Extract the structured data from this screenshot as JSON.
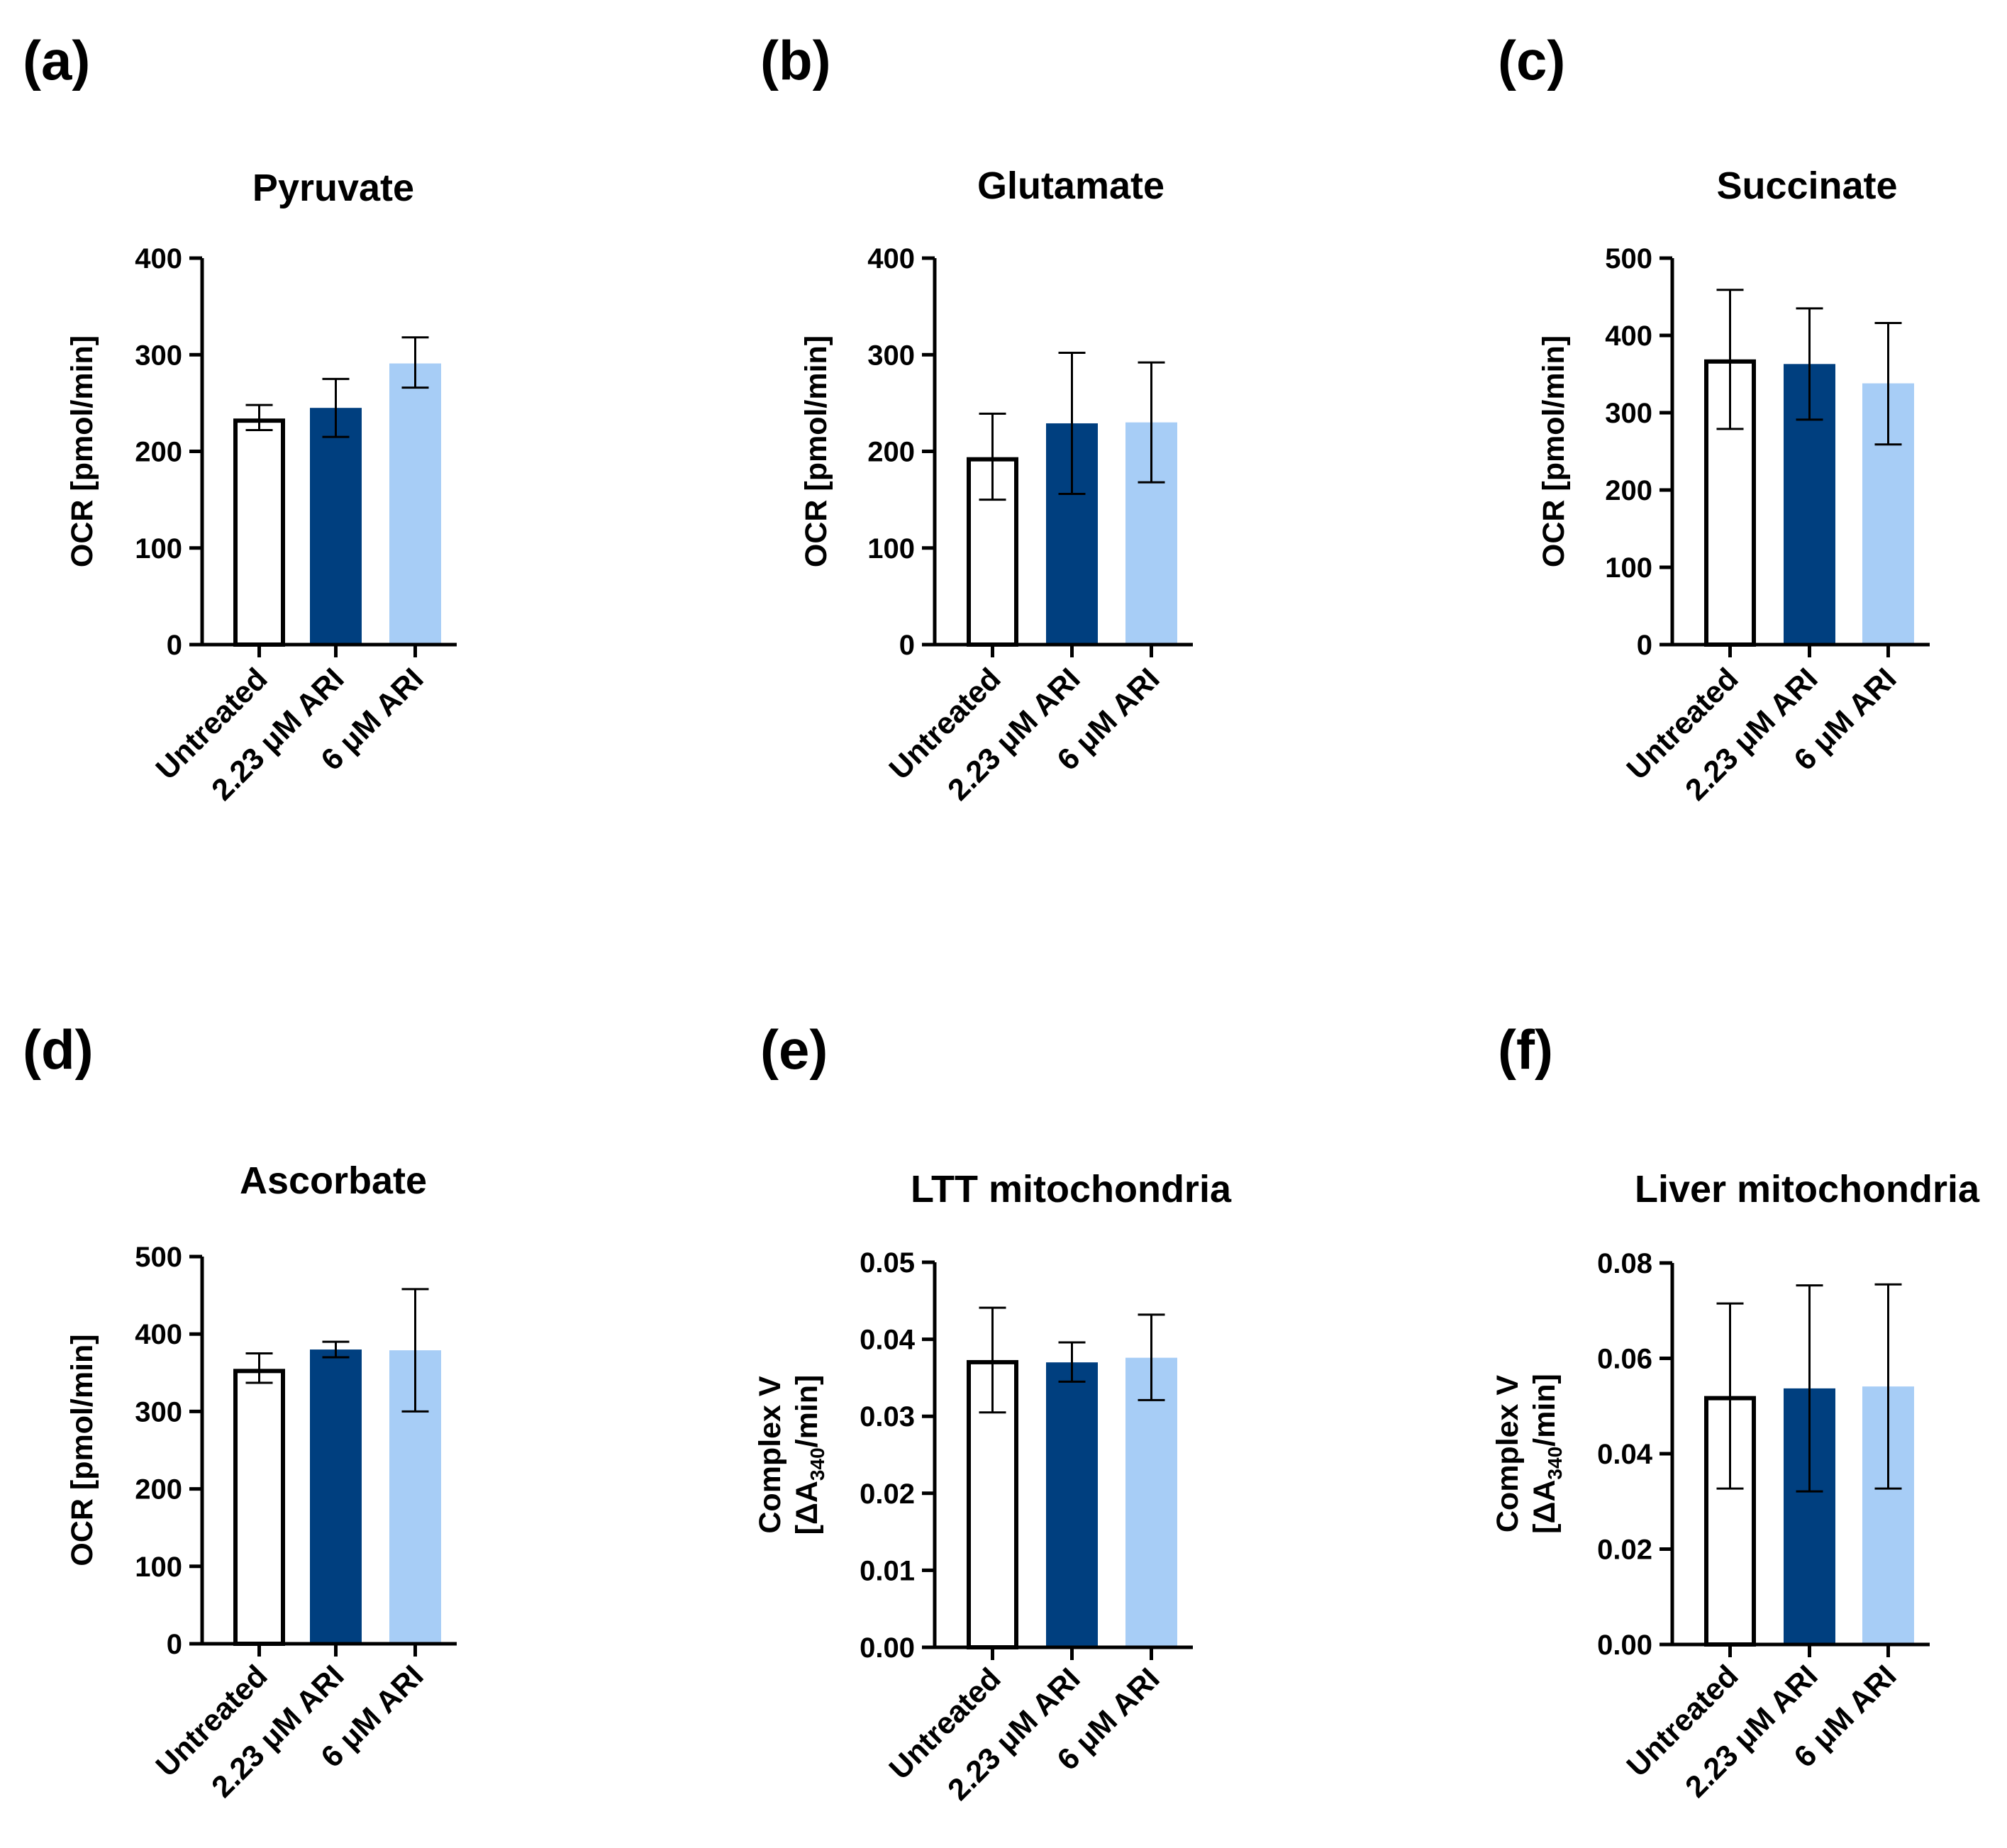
{
  "colors": {
    "untreated": "#ffffff",
    "ari_low": "#003f7f",
    "ari_high": "#a7cdf6",
    "axis": "#000000"
  },
  "chart_data": [
    {
      "panel": "(a)",
      "type": "bar",
      "title": "Pyruvate",
      "ylabel": "OCR [pmol/min]",
      "ylabel_parts": [],
      "ylim": [
        0,
        400
      ],
      "yticks": [
        "0",
        "100",
        "200",
        "300",
        "400"
      ],
      "ytick_values": [
        0,
        100,
        200,
        300,
        400
      ],
      "categories": [
        "Untreated",
        "2.23 μM ARI",
        "6 μM ARI"
      ],
      "values": [
        234,
        245,
        291
      ],
      "error_low": [
        222,
        215,
        266
      ],
      "error_high": [
        248,
        275,
        318
      ]
    },
    {
      "panel": "(b)",
      "type": "bar",
      "title": "Glutamate",
      "ylabel": "OCR [pmol/min]",
      "ylabel_parts": [],
      "ylim": [
        0,
        400
      ],
      "yticks": [
        "0",
        "100",
        "200",
        "300",
        "400"
      ],
      "ytick_values": [
        0,
        100,
        200,
        300,
        400
      ],
      "categories": [
        "Untreated",
        "2.23 μM ARI",
        "6 μM ARI"
      ],
      "values": [
        194,
        229,
        230
      ],
      "error_low": [
        150,
        156,
        168
      ],
      "error_high": [
        239,
        302,
        292
      ]
    },
    {
      "panel": "(c)",
      "type": "bar",
      "title": "Succinate",
      "ylabel": "OCR [pmol/min]",
      "ylabel_parts": [],
      "ylim": [
        0,
        500
      ],
      "yticks": [
        "0",
        "100",
        "200",
        "300",
        "400",
        "500"
      ],
      "ytick_values": [
        0,
        100,
        200,
        300,
        400,
        500
      ],
      "categories": [
        "Untreated",
        "2.23 μM ARI",
        "6 μM ARI"
      ],
      "values": [
        369,
        363,
        338
      ],
      "error_low": [
        279,
        291,
        259
      ],
      "error_high": [
        459,
        435,
        416
      ]
    },
    {
      "panel": "(d)",
      "type": "bar",
      "title": "Ascorbate",
      "ylabel": "OCR [pmol/min]",
      "ylabel_parts": [],
      "ylim": [
        0,
        500
      ],
      "yticks": [
        "0",
        "100",
        "200",
        "300",
        "400",
        "500"
      ],
      "ytick_values": [
        0,
        100,
        200,
        300,
        400,
        500
      ],
      "categories": [
        "Untreated",
        "2.23 μM ARI",
        "6 μM ARI"
      ],
      "values": [
        355,
        380,
        379
      ],
      "error_low": [
        337,
        370,
        300
      ],
      "error_high": [
        375,
        390,
        458
      ]
    },
    {
      "panel": "(e)",
      "type": "bar",
      "title": "LTT mitochondria",
      "ylabel": "Complex V [ΔA340/min]",
      "ylabel_parts": [
        "Complex V",
        "[ΔA",
        "340",
        "/min]"
      ],
      "ylim": [
        0,
        0.05
      ],
      "yticks": [
        "0.00",
        "0.01",
        "0.02",
        "0.03",
        "0.04",
        "0.05"
      ],
      "ytick_values": [
        0,
        0.01,
        0.02,
        0.03,
        0.04,
        0.05
      ],
      "categories": [
        "Untreated",
        "2.23 μM ARI",
        "6 μM ARI"
      ],
      "values": [
        0.0373,
        0.037,
        0.0376
      ],
      "error_low": [
        0.0305,
        0.0345,
        0.0321
      ],
      "error_high": [
        0.0441,
        0.0396,
        0.0432
      ]
    },
    {
      "panel": "(f)",
      "type": "bar",
      "title": "Liver mitochondria",
      "ylabel": "Complex V [ΔA340/min]",
      "ylabel_parts": [
        "Complex V",
        "[ΔA",
        "340",
        "/min]"
      ],
      "ylim": [
        0,
        0.08
      ],
      "yticks": [
        "0.00",
        "0.02",
        "0.04",
        "0.06",
        "0.08"
      ],
      "ytick_values": [
        0,
        0.02,
        0.04,
        0.06,
        0.08
      ],
      "categories": [
        "Untreated",
        "2.23 μM ARI",
        "6 μM ARI"
      ],
      "values": [
        0.0521,
        0.0537,
        0.0541
      ],
      "error_low": [
        0.0327,
        0.0321,
        0.0327
      ],
      "error_high": [
        0.0715,
        0.0753,
        0.0755
      ]
    }
  ]
}
